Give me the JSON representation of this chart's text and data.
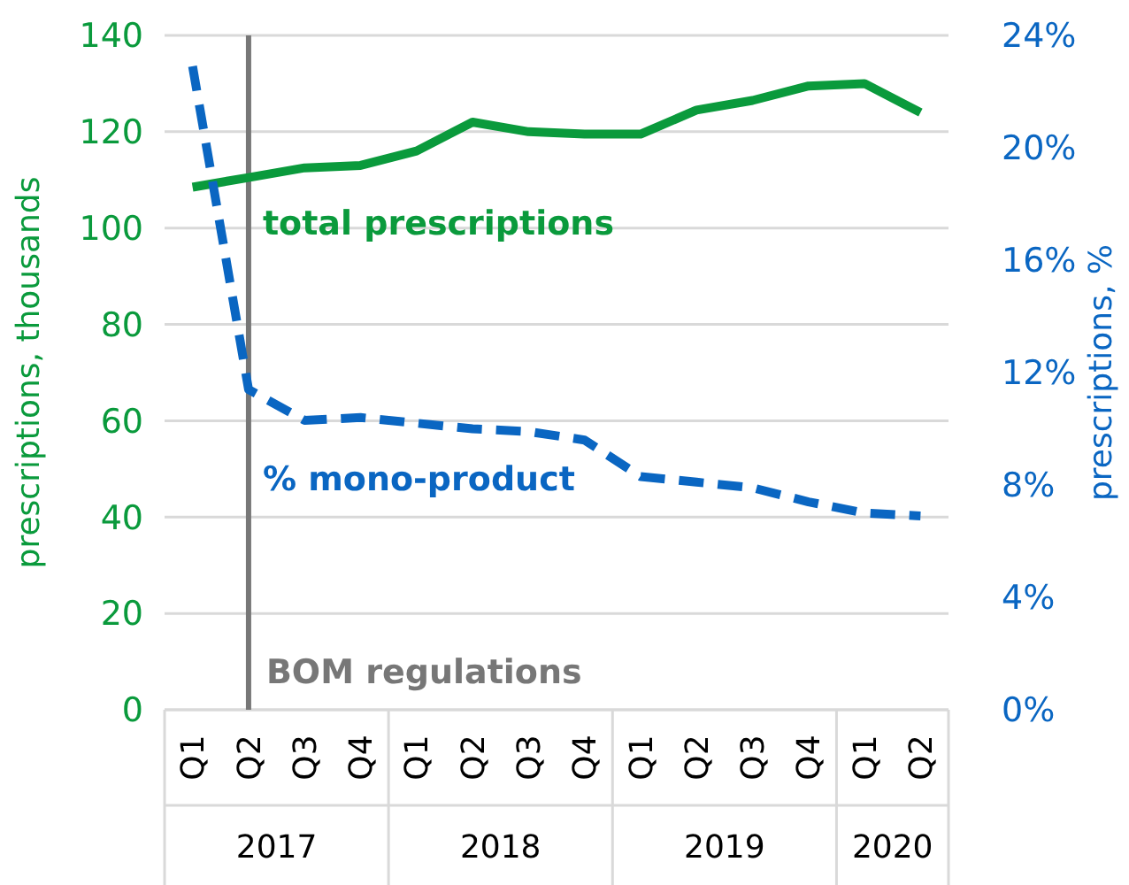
{
  "chart_data": {
    "type": "line",
    "ylabel": "prescriptions, thousands",
    "y2label": "prescriptions, %",
    "categories": [
      "Q1",
      "Q2",
      "Q3",
      "Q4",
      "Q1",
      "Q2",
      "Q3",
      "Q4",
      "Q1",
      "Q2",
      "Q3",
      "Q4",
      "Q1",
      "Q2"
    ],
    "annotations": [
      "2017",
      "2018",
      "2019",
      "2020"
    ],
    "series": [
      {
        "name": "total prescriptions",
        "color": "#0a9a3c",
        "values": [
          108.5,
          110.5,
          112.5,
          113,
          116,
          122,
          120,
          119.5,
          119.5,
          124.5,
          126.5,
          129.5,
          130,
          124
        ],
        "line_style": "solid"
      },
      {
        "name": "% mono-product",
        "color": "#0a66c2",
        "axis": "y2",
        "values": [
          22.9,
          11.4,
          10.3,
          10.4,
          10.2,
          10,
          9.9,
          9.6,
          8.3,
          8.1,
          7.9,
          7.4,
          7,
          6.9
        ],
        "line_style": "dashed"
      }
    ],
    "ylim": [
      0,
      140
    ],
    "yticks": [
      0,
      20,
      40,
      60,
      80,
      100,
      120,
      140
    ],
    "y2lim": [
      0,
      24
    ],
    "y2ticks": [
      {
        "value": 0,
        "label": "0%"
      },
      {
        "value": 4,
        "label": "4%"
      },
      {
        "value": 8,
        "label": "8%"
      },
      {
        "value": 12,
        "label": "12%"
      },
      {
        "value": 16,
        "label": "16%"
      },
      {
        "value": 20,
        "label": "20%"
      },
      {
        "value": 24,
        "label": "24%"
      }
    ],
    "ref_lines": [
      {
        "axis": "x",
        "value": "Q2",
        "label": "BOM regulations",
        "color": "#777777"
      }
    ],
    "grid": "y",
    "marker": "none"
  }
}
